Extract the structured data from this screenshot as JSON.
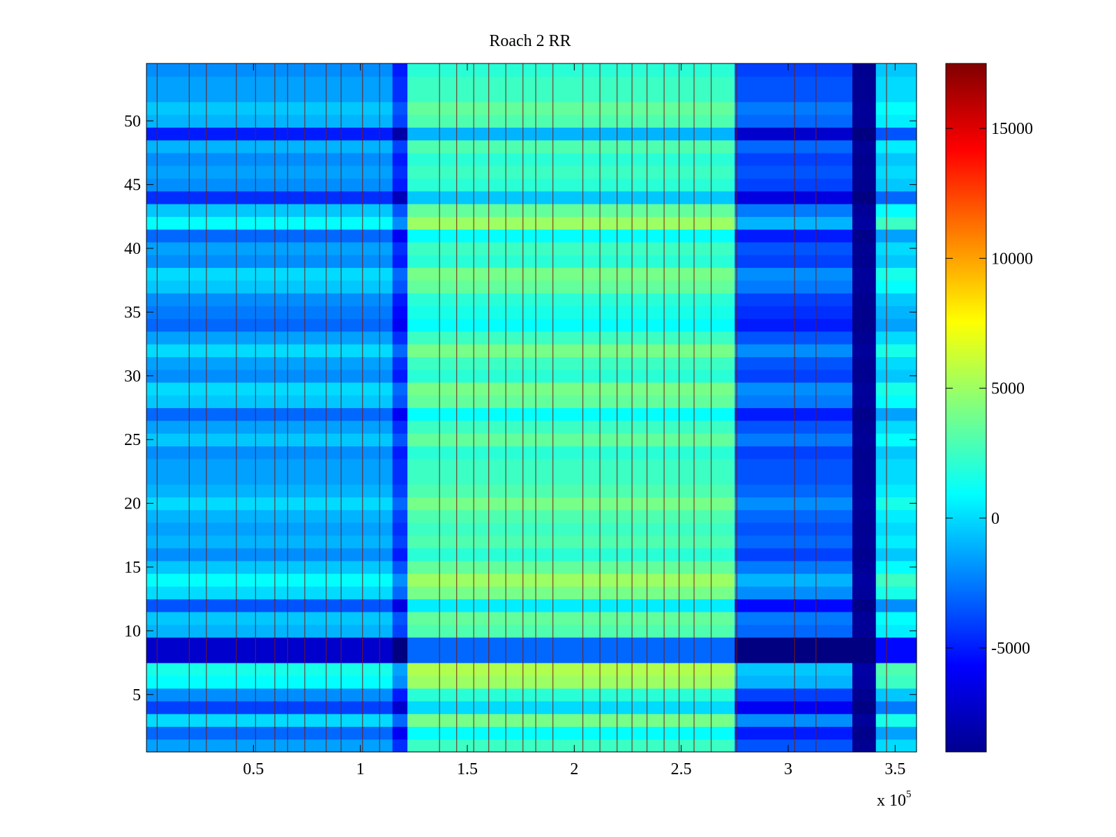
{
  "chart_data": {
    "type": "heatmap",
    "title": "Roach 2 RR",
    "xlabel": "",
    "ylabel": "",
    "x_range": [
      0,
      360000
    ],
    "y_range": [
      0.5,
      54.5
    ],
    "x_ticks": [
      {
        "value": 50000,
        "label": "0.5"
      },
      {
        "value": 100000,
        "label": "1"
      },
      {
        "value": 150000,
        "label": "1.5"
      },
      {
        "value": 200000,
        "label": "2"
      },
      {
        "value": 250000,
        "label": "2.5"
      },
      {
        "value": 300000,
        "label": "3"
      },
      {
        "value": 350000,
        "label": "3.5"
      }
    ],
    "x_multiplier": {
      "base": "x 10",
      "exponent": "5"
    },
    "y_ticks": [
      {
        "value": 5,
        "label": "5"
      },
      {
        "value": 10,
        "label": "10"
      },
      {
        "value": 15,
        "label": "15"
      },
      {
        "value": 20,
        "label": "20"
      },
      {
        "value": 25,
        "label": "25"
      },
      {
        "value": 30,
        "label": "30"
      },
      {
        "value": 35,
        "label": "35"
      },
      {
        "value": 40,
        "label": "40"
      },
      {
        "value": 45,
        "label": "45"
      },
      {
        "value": 50,
        "label": "50"
      }
    ],
    "colorbar": {
      "colormap": "jet",
      "min": -9000,
      "max": 17500,
      "ticks": [
        {
          "value": -5000,
          "label": "-5000"
        },
        {
          "value": 0,
          "label": "0"
        },
        {
          "value": 5000,
          "label": "5000"
        },
        {
          "value": 10000,
          "label": "10000"
        },
        {
          "value": 15000,
          "label": "15000"
        }
      ]
    },
    "segments": [
      {
        "x_start": 0,
        "x_end": 115000,
        "level": -1500
      },
      {
        "x_start": 115000,
        "x_end": 122000,
        "level": -4500
      },
      {
        "x_start": 122000,
        "x_end": 275000,
        "level": 2500
      },
      {
        "x_start": 275000,
        "x_end": 330000,
        "level": -3500
      },
      {
        "x_start": 330000,
        "x_end": 341000,
        "level": -8500
      },
      {
        "x_start": 341000,
        "x_end": 360000,
        "level": 0
      }
    ],
    "row_offsets": [
      0,
      -1500,
      1500,
      -2500,
      -500,
      2500,
      3000,
      -5500,
      -5500,
      500,
      1000,
      -2000,
      1500,
      2500,
      1000,
      -500,
      500,
      0,
      500,
      1500,
      500,
      0,
      0,
      -500,
      1000,
      0,
      -1500,
      1000,
      1500,
      -500,
      0,
      1500,
      0,
      -1500,
      -1000,
      -500,
      1000,
      1500,
      -500,
      0,
      -1500,
      2500,
      1000,
      -3000,
      -500,
      0,
      -500,
      500,
      -3500,
      500,
      1000,
      0,
      0,
      -500
    ],
    "vertical_streaks_x": [
      5000,
      20000,
      28000,
      42000,
      51000,
      60000,
      66000,
      74000,
      84000,
      91000,
      101000,
      109000,
      137000,
      145000,
      153000,
      160000,
      168000,
      176000,
      182000,
      190000,
      204000,
      212000,
      220000,
      227000,
      234000,
      242000,
      249000,
      256000,
      264000,
      276000,
      303000,
      313000,
      346000
    ]
  }
}
